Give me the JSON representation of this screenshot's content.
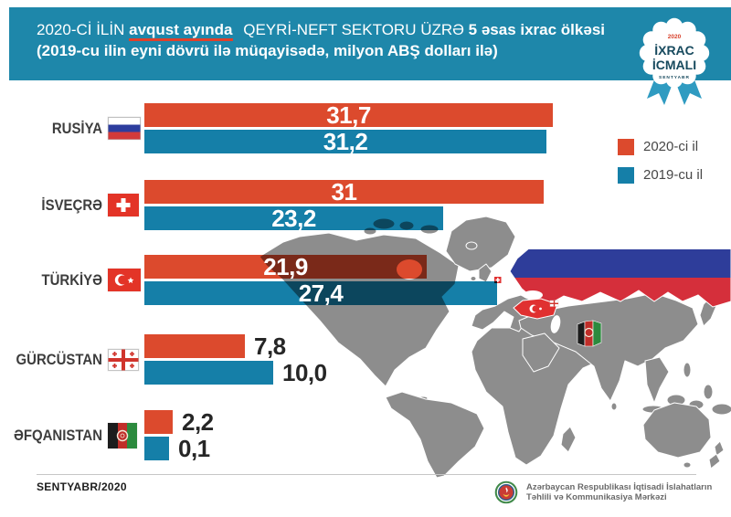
{
  "header": {
    "line1_seg1": "2020-Cİ İLİN",
    "line1_highlight": "avqust ayında",
    "line1_seg3": "QEYRİ-NEFT SEKTORU ÜZRƏ",
    "line1_seg4": "5 əsas ixrac ölkəsi",
    "line2": "(2019-cu ilin eyni dövrü ilə müqayisədə, milyon ABŞ dolları ilə)"
  },
  "badge": {
    "year": "2020",
    "title_line1": "İXRAC",
    "title_line2": "İCMALI",
    "month": "SENTYABR"
  },
  "legend": {
    "items": [
      {
        "label": "2020-ci il",
        "color": "#dc4a2d"
      },
      {
        "label": "2019-cu il",
        "color": "#157fa8"
      }
    ]
  },
  "chart_data": {
    "type": "bar",
    "orientation": "horizontal",
    "title": "2020-ci ilin avqust ayında qeyri-neft sektoru üzrə 5 əsas ixrac ölkəsi",
    "subtitle": "2019-cu ilin eyni dövrü ilə müqayisədə",
    "unit": "milyon ABŞ dolları",
    "xlim": [
      0,
      33
    ],
    "categories": [
      "RUSİYA",
      "İSVEÇRƏ",
      "TÜRKİYƏ",
      "GÜRCÜSTAN",
      "ƏFQANISTAN"
    ],
    "flag_icons": [
      "flag-russia-icon",
      "flag-switzerland-icon",
      "flag-turkey-icon",
      "flag-georgia-icon",
      "flag-afghanistan-icon"
    ],
    "series": [
      {
        "name": "2020-ci il",
        "color": "#dc4a2d",
        "values": [
          31.7,
          31,
          21.9,
          7.8,
          2.2
        ],
        "display": [
          "31,7",
          "31",
          "21,9",
          "7,8",
          "2,2"
        ]
      },
      {
        "name": "2019-cu il",
        "color": "#157fa8",
        "values": [
          31.2,
          23.2,
          27.4,
          10.0,
          0.1
        ],
        "display": [
          "31,2",
          "23,2",
          "27,4",
          "10,0",
          "0,1"
        ]
      }
    ],
    "legend_position": "right"
  },
  "footer": {
    "date": "SENTYABR/2020",
    "org_line1": "Azərbaycan Respublikası İqtisadi İslahatların",
    "org_line2": "Təhlili və Kommunikasiya Mərkəzi"
  },
  "colors": {
    "header_bg": "#1e87aa",
    "bar_2020": "#dc4a2d",
    "bar_2019": "#157fa8",
    "map_gray": "#8d8d8d",
    "accent_red": "#e0402a",
    "badge_text": "#174a5e",
    "ribbon_blue": "#2f9bc1"
  }
}
